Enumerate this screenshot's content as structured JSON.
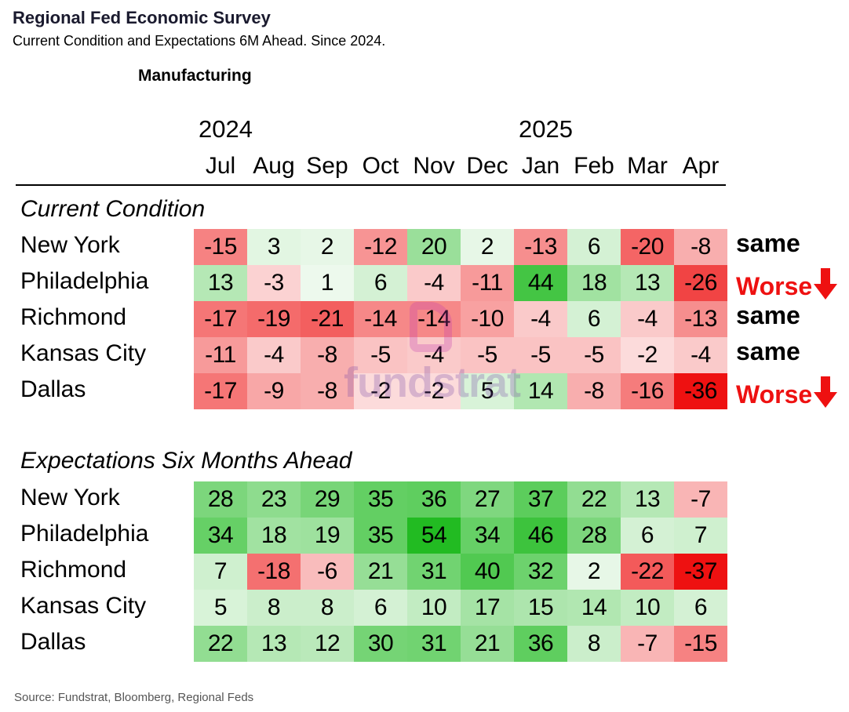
{
  "title": "Regional Fed Economic Survey",
  "subtitle": "Current Condition and Expectations 6M Ahead. Since 2024.",
  "section": "Manufacturing",
  "years": [
    {
      "label": "2024",
      "col": 0
    },
    {
      "label": "2025",
      "col": 6
    }
  ],
  "months": [
    "Jul",
    "Aug",
    "Sep",
    "Oct",
    "Nov",
    "Dec",
    "Jan",
    "Feb",
    "Mar",
    "Apr"
  ],
  "source": "Source: Fundstrat, Bloomberg, Regional Feds",
  "watermark": "fundstrat",
  "chart_data": [
    {
      "type": "heatmap",
      "title": "Current Condition",
      "columns": [
        "Jul",
        "Aug",
        "Sep",
        "Oct",
        "Nov",
        "Dec",
        "Jan",
        "Feb",
        "Mar",
        "Apr"
      ],
      "rows": [
        {
          "name": "New York",
          "values": [
            -15,
            3,
            2,
            -12,
            20,
            2,
            -13,
            6,
            -20,
            -8
          ],
          "status": "same"
        },
        {
          "name": "Philadelphia",
          "values": [
            13,
            -3,
            1,
            6,
            -4,
            -11,
            44,
            18,
            13,
            -26
          ],
          "status": "Worse"
        },
        {
          "name": "Richmond",
          "values": [
            -17,
            -19,
            -21,
            -14,
            -14,
            -10,
            -4,
            6,
            -4,
            -13
          ],
          "status": "same"
        },
        {
          "name": "Kansas City",
          "values": [
            -11,
            -4,
            -8,
            -5,
            -4,
            -5,
            -5,
            -5,
            -2,
            -4
          ],
          "status": "same"
        },
        {
          "name": "Dallas",
          "values": [
            -17,
            -9,
            -8,
            -2,
            -2,
            5,
            14,
            -8,
            -16,
            -36
          ],
          "status": "Worse"
        }
      ]
    },
    {
      "type": "heatmap",
      "title": "Expectations Six Months Ahead",
      "columns": [
        "Jul",
        "Aug",
        "Sep",
        "Oct",
        "Nov",
        "Dec",
        "Jan",
        "Feb",
        "Mar",
        "Apr"
      ],
      "rows": [
        {
          "name": "New York",
          "values": [
            28,
            23,
            29,
            35,
            36,
            27,
            37,
            22,
            13,
            -7
          ]
        },
        {
          "name": "Philadelphia",
          "values": [
            34,
            18,
            19,
            35,
            54,
            34,
            46,
            28,
            6,
            7
          ]
        },
        {
          "name": "Richmond",
          "values": [
            7,
            -18,
            -6,
            21,
            31,
            40,
            32,
            2,
            -22,
            -37
          ]
        },
        {
          "name": "Kansas City",
          "values": [
            5,
            8,
            8,
            6,
            10,
            17,
            15,
            14,
            10,
            6
          ]
        },
        {
          "name": "Dallas",
          "values": [
            22,
            13,
            12,
            30,
            31,
            21,
            36,
            8,
            -7,
            -15
          ]
        }
      ]
    }
  ],
  "colors": {
    "positive_max": "#22bb22",
    "negative_max": "#ee1111",
    "neutral": "#ffffff",
    "worse_text": "#ee1111"
  }
}
